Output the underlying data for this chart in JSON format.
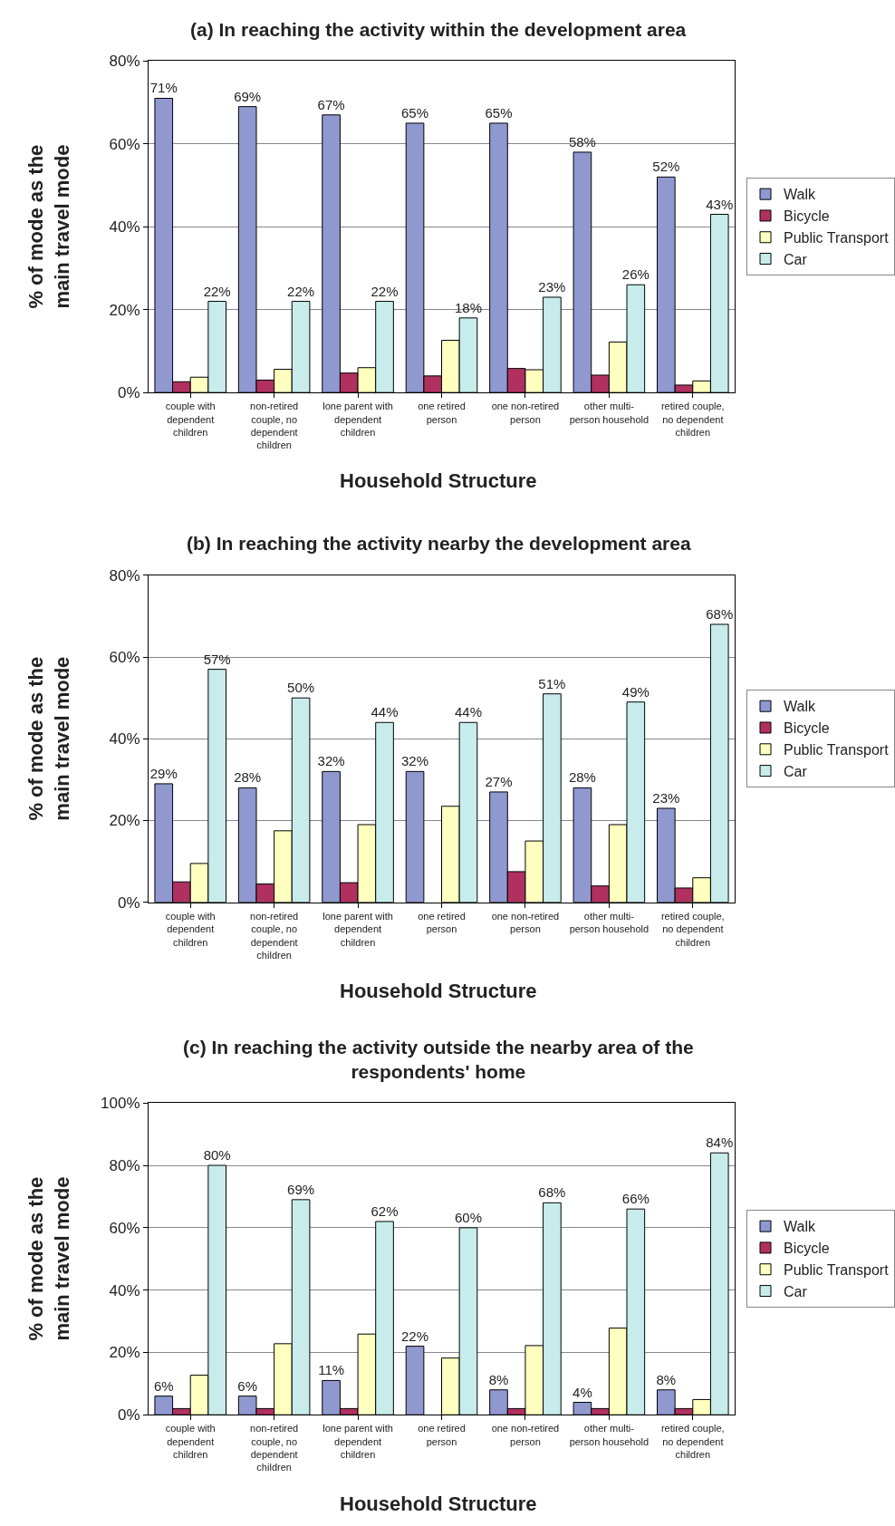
{
  "chart_data": [
    {
      "type": "bar",
      "title": "(a) In reaching the activity within the development area",
      "xlabel": "Household Structure",
      "ylabel": "% of mode as the main travel mode",
      "categories": [
        "couple with dependent children",
        "non-retired couple, no dependent children",
        "lone parent with dependent children",
        "one retired person",
        "one non-retired person",
        "other multi-person household",
        "retired couple, no dependent children"
      ],
      "series": [
        {
          "name": "Walk",
          "color": "#9098d0",
          "values": [
            71,
            69,
            67,
            65,
            65,
            58,
            52
          ],
          "value_labels": [
            "71%",
            "69%",
            "67%",
            "65%",
            "65%",
            "58%",
            "52%"
          ]
        },
        {
          "name": "Bicycle",
          "color": "#b03060",
          "values": [
            2.6,
            3,
            4.7,
            4,
            5.8,
            4.2,
            1.8
          ]
        },
        {
          "name": "Public Transport",
          "color": "#ffffc0",
          "values": [
            3.7,
            5.6,
            6,
            12.6,
            5.5,
            12.2,
            2.8
          ]
        },
        {
          "name": "Car",
          "color": "#c8ecec",
          "values": [
            22,
            22,
            22,
            18,
            23,
            26,
            43
          ],
          "value_labels": [
            "22%",
            "22%",
            "22%",
            "18%",
            "23%",
            "26%",
            "43%"
          ]
        }
      ],
      "ylim": [
        0,
        80
      ],
      "yticks": [
        {
          "value": 0,
          "label": "0%"
        },
        {
          "value": 20,
          "label": "20%"
        },
        {
          "value": 40,
          "label": "40%"
        },
        {
          "value": 60,
          "label": "60%"
        },
        {
          "value": 80,
          "label": "80%"
        }
      ],
      "grid": "y",
      "legend": "right"
    },
    {
      "type": "bar",
      "title": "(b) In reaching the activity nearby the development area",
      "xlabel": "Household Structure",
      "ylabel": "% of mode as the main travel mode",
      "categories": [
        "couple with dependent children",
        "non-retired couple, no dependent children",
        "lone parent with dependent children",
        "one retired person",
        "one non-retired person",
        "other multi-person household",
        "retired couple, no dependent children"
      ],
      "series": [
        {
          "name": "Walk",
          "color": "#9098d0",
          "values": [
            29,
            28,
            32,
            32,
            27,
            28,
            23
          ],
          "value_labels": [
            "29%",
            "28%",
            "32%",
            "32%",
            "27%",
            "28%",
            "23%"
          ]
        },
        {
          "name": "Bicycle",
          "color": "#b03060",
          "values": [
            5,
            4.5,
            4.8,
            null,
            7.5,
            4,
            3.5
          ]
        },
        {
          "name": "Public Transport",
          "color": "#ffffc0",
          "values": [
            9.5,
            17.5,
            19,
            23.5,
            15,
            19,
            6
          ]
        },
        {
          "name": "Car",
          "color": "#c8ecec",
          "values": [
            57,
            50,
            44,
            44,
            51,
            49,
            68
          ],
          "value_labels": [
            "57%",
            "50%",
            "44%",
            "44%",
            "51%",
            "49%",
            "68%"
          ]
        }
      ],
      "ylim": [
        0,
        80
      ],
      "yticks": [
        {
          "value": 0,
          "label": "0%"
        },
        {
          "value": 20,
          "label": "20%"
        },
        {
          "value": 40,
          "label": "40%"
        },
        {
          "value": 60,
          "label": "60%"
        },
        {
          "value": 80,
          "label": "80%"
        }
      ],
      "grid": "y",
      "legend": "right"
    },
    {
      "type": "bar",
      "title": "(c) In reaching the activity outside the nearby area of the respondents' home",
      "xlabel": "Household Structure",
      "ylabel": "% of mode as the main travel mode",
      "categories": [
        "couple with dependent children",
        "non-retired couple, no dependent children",
        "lone parent with dependent children",
        "one retired person",
        "one non-retired person",
        "other multi-person household",
        "retired couple, no dependent children"
      ],
      "series": [
        {
          "name": "Walk",
          "color": "#9098d0",
          "values": [
            6,
            6,
            11,
            22,
            8,
            4,
            8
          ],
          "value_labels": [
            "6%",
            "6%",
            "11%",
            "22%",
            "8%",
            "4%",
            "8%"
          ]
        },
        {
          "name": "Bicycle",
          "color": "#b03060",
          "values": [
            2,
            2,
            2,
            null,
            2,
            2,
            2
          ]
        },
        {
          "name": "Public Transport",
          "color": "#ffffc0",
          "values": [
            12.7,
            22.8,
            25.9,
            18.2,
            22.2,
            27.8,
            4.9
          ]
        },
        {
          "name": "Car",
          "color": "#c8ecec",
          "values": [
            80,
            69,
            62,
            60,
            68,
            66,
            84
          ],
          "value_labels": [
            "80%",
            "69%",
            "62%",
            "60%",
            "68%",
            "66%",
            "84%"
          ]
        }
      ],
      "ylim": [
        0,
        100
      ],
      "yticks": [
        {
          "value": 0,
          "label": "0%"
        },
        {
          "value": 20,
          "label": "20%"
        },
        {
          "value": 40,
          "label": "40%"
        },
        {
          "value": 60,
          "label": "60%"
        },
        {
          "value": 80,
          "label": "80%"
        },
        {
          "value": 100,
          "label": "100%"
        }
      ],
      "grid": "y",
      "legend": "right"
    }
  ]
}
